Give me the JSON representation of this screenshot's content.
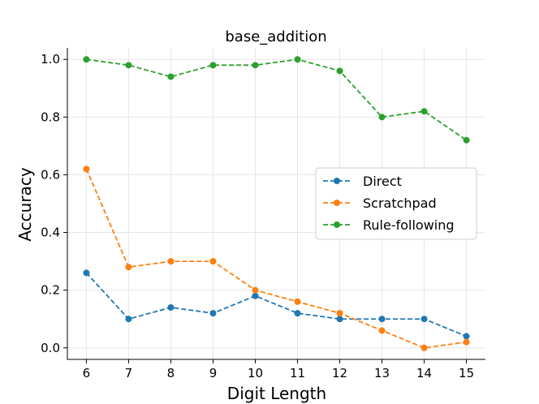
{
  "chart_data": {
    "type": "line",
    "title": "base_addition",
    "xlabel": "Digit Length",
    "ylabel": "Accuracy",
    "x": [
      6,
      7,
      8,
      9,
      10,
      11,
      12,
      13,
      14,
      15
    ],
    "xlim": [
      5.55,
      15.45
    ],
    "ylim": [
      -0.04,
      1.04
    ],
    "yticks": [
      0.0,
      0.2,
      0.4,
      0.6,
      0.8,
      1.0
    ],
    "ytick_labels": [
      "0.0",
      "0.2",
      "0.4",
      "0.6",
      "0.8",
      "1.0"
    ],
    "xtick_labels": [
      "6",
      "7",
      "8",
      "9",
      "10",
      "11",
      "12",
      "13",
      "14",
      "15"
    ],
    "grid": true,
    "legend_position": "center-right",
    "series": [
      {
        "name": "Direct",
        "color": "#1f77b4",
        "values": [
          0.26,
          0.1,
          0.14,
          0.12,
          0.18,
          0.12,
          0.1,
          0.1,
          0.1,
          0.04
        ]
      },
      {
        "name": "Scratchpad",
        "color": "#ff7f0e",
        "values": [
          0.62,
          0.28,
          0.3,
          0.3,
          0.2,
          0.16,
          0.12,
          0.06,
          0.0,
          0.02
        ]
      },
      {
        "name": "Rule-following",
        "color": "#2ca02c",
        "values": [
          1.0,
          0.98,
          0.94,
          0.98,
          0.98,
          1.0,
          0.96,
          0.8,
          0.82,
          0.72
        ]
      }
    ]
  }
}
